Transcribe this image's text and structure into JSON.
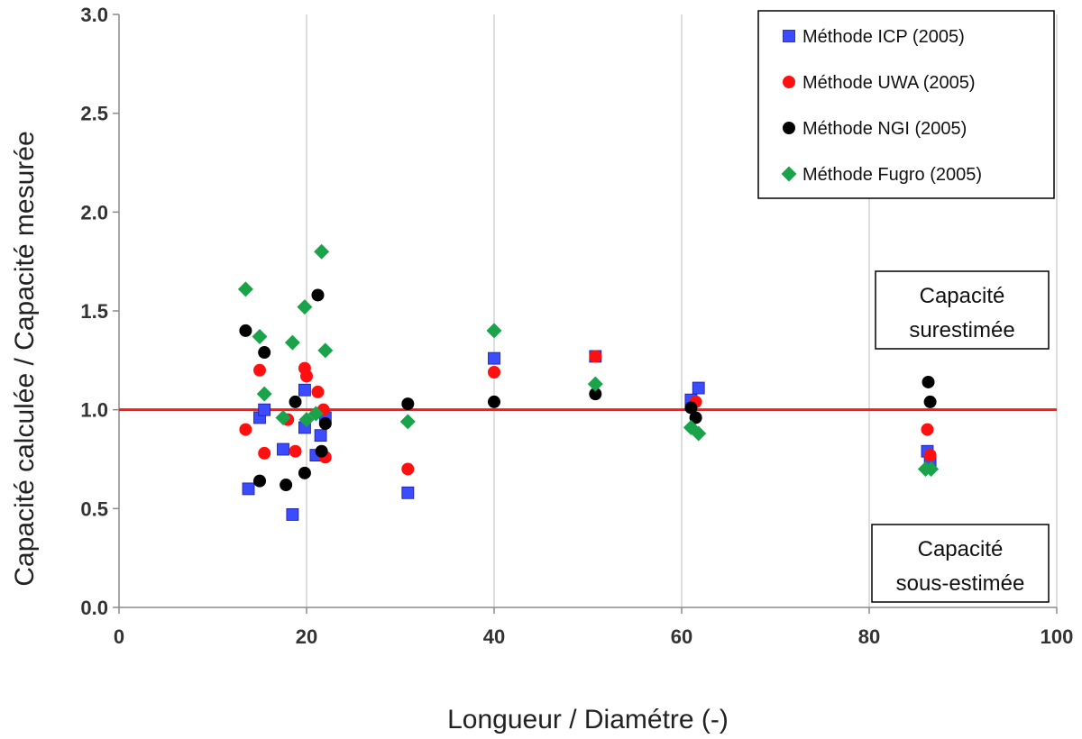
{
  "chart_data": {
    "type": "scatter",
    "xlabel": "Longueur / Diamétre (-)",
    "ylabel": "Capacité calculée / Capacité  mesurée",
    "xlim": [
      0,
      100
    ],
    "ylim": [
      0,
      3.0
    ],
    "xticks": [
      "0",
      "20",
      "40",
      "60",
      "80",
      "100"
    ],
    "yticks": [
      "0.0",
      "0.5",
      "1.0",
      "1.5",
      "2.0",
      "2.5",
      "3.0"
    ],
    "grid": "vertical",
    "legend_position": "top-right",
    "reference_line": {
      "y": 1.0,
      "color": "#ff1a1a"
    },
    "annotations": [
      {
        "id": "over",
        "lines": [
          "Capacité",
          "surestimée"
        ]
      },
      {
        "id": "under",
        "lines": [
          "Capacité",
          "sous-estimée"
        ]
      }
    ],
    "series": [
      {
        "name": "Méthode ICP (2005)",
        "marker": "square",
        "color": "#3b4cff",
        "points": [
          [
            13.8,
            0.6
          ],
          [
            15.0,
            0.96
          ],
          [
            15.5,
            1.0
          ],
          [
            17.5,
            0.8
          ],
          [
            18.5,
            0.47
          ],
          [
            19.8,
            1.1
          ],
          [
            19.8,
            0.91
          ],
          [
            21.0,
            0.77
          ],
          [
            21.5,
            0.87
          ],
          [
            22.0,
            0.96
          ],
          [
            30.8,
            0.58
          ],
          [
            40.0,
            1.26
          ],
          [
            50.8,
            1.27
          ],
          [
            61.0,
            1.05
          ],
          [
            61.8,
            1.11
          ],
          [
            86.2,
            0.79
          ],
          [
            86.5,
            0.73
          ]
        ]
      },
      {
        "name": "Méthode UWA (2005)",
        "marker": "circle",
        "color": "#ff1010",
        "points": [
          [
            13.5,
            0.9
          ],
          [
            15.0,
            1.2
          ],
          [
            15.5,
            0.78
          ],
          [
            18.0,
            0.95
          ],
          [
            18.8,
            0.79
          ],
          [
            19.8,
            1.21
          ],
          [
            20.0,
            1.17
          ],
          [
            21.2,
            1.09
          ],
          [
            21.8,
            1.0
          ],
          [
            22.0,
            0.76
          ],
          [
            30.8,
            0.7
          ],
          [
            40.0,
            1.19
          ],
          [
            50.8,
            1.27
          ],
          [
            61.5,
            1.04
          ],
          [
            86.2,
            0.9
          ],
          [
            86.5,
            0.77
          ]
        ]
      },
      {
        "name": "Méthode NGI (2005)",
        "marker": "circle",
        "color": "#000000",
        "points": [
          [
            13.5,
            1.4
          ],
          [
            15.0,
            0.64
          ],
          [
            15.5,
            1.29
          ],
          [
            17.8,
            0.62
          ],
          [
            18.8,
            1.04
          ],
          [
            19.8,
            0.68
          ],
          [
            21.2,
            1.58
          ],
          [
            21.6,
            0.79
          ],
          [
            22.0,
            0.93
          ],
          [
            30.8,
            1.03
          ],
          [
            40.0,
            1.04
          ],
          [
            50.8,
            1.08
          ],
          [
            61.0,
            1.01
          ],
          [
            61.5,
            0.96
          ],
          [
            86.3,
            1.14
          ],
          [
            86.5,
            1.04
          ]
        ]
      },
      {
        "name": "Méthode Fugro (2005)",
        "marker": "diamond",
        "color": "#1aa34a",
        "points": [
          [
            13.5,
            1.61
          ],
          [
            15.0,
            1.37
          ],
          [
            15.5,
            1.08
          ],
          [
            17.5,
            0.96
          ],
          [
            18.5,
            1.34
          ],
          [
            19.8,
            1.52
          ],
          [
            20.0,
            0.95
          ],
          [
            21.0,
            0.98
          ],
          [
            21.6,
            1.8
          ],
          [
            22.0,
            1.3
          ],
          [
            30.8,
            0.94
          ],
          [
            40.0,
            1.4
          ],
          [
            50.8,
            1.13
          ],
          [
            61.0,
            0.91
          ],
          [
            61.8,
            0.88
          ],
          [
            86.0,
            0.7
          ],
          [
            86.6,
            0.7
          ]
        ]
      }
    ]
  }
}
